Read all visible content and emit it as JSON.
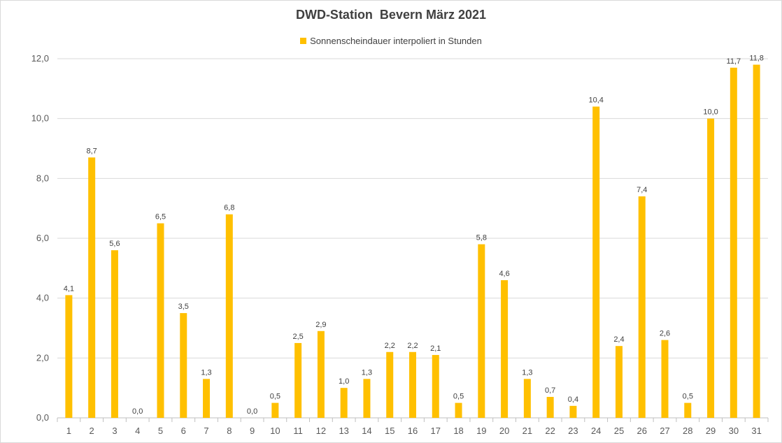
{
  "chart_data": {
    "type": "bar",
    "title": "DWD-Station  Bevern März 2021",
    "series": [
      {
        "name": "Sonnenscheindauer interpoliert in Stunden",
        "color": "#FFC000",
        "values": [
          4.1,
          8.7,
          5.6,
          0.0,
          6.5,
          3.5,
          1.3,
          6.8,
          0.0,
          0.5,
          2.5,
          2.9,
          1.0,
          1.3,
          2.2,
          2.2,
          2.1,
          0.5,
          5.8,
          4.6,
          1.3,
          0.7,
          0.4,
          10.4,
          2.4,
          7.4,
          2.6,
          0.5,
          10.0,
          11.7,
          11.8
        ]
      }
    ],
    "categories": [
      "1",
      "2",
      "3",
      "4",
      "5",
      "6",
      "7",
      "8",
      "9",
      "10",
      "11",
      "12",
      "13",
      "14",
      "15",
      "16",
      "17",
      "18",
      "19",
      "20",
      "21",
      "22",
      "23",
      "24",
      "25",
      "26",
      "27",
      "28",
      "29",
      "30",
      "31"
    ],
    "data_labels": [
      "4,1",
      "8,7",
      "5,6",
      "0,0",
      "6,5",
      "3,5",
      "1,3",
      "6,8",
      "0,0",
      "0,5",
      "2,5",
      "2,9",
      "1,0",
      "1,3",
      "2,2",
      "2,2",
      "2,1",
      "0,5",
      "5,8",
      "4,6",
      "1,3",
      "0,7",
      "0,4",
      "10,4",
      "2,4",
      "7,4",
      "2,6",
      "0,5",
      "10,0",
      "11,7",
      "11,8"
    ],
    "y_ticks": [
      "0,0",
      "2,0",
      "4,0",
      "6,0",
      "8,0",
      "10,0",
      "12,0"
    ],
    "ylim": [
      0,
      12
    ],
    "grid": true,
    "legend_position": "top"
  }
}
